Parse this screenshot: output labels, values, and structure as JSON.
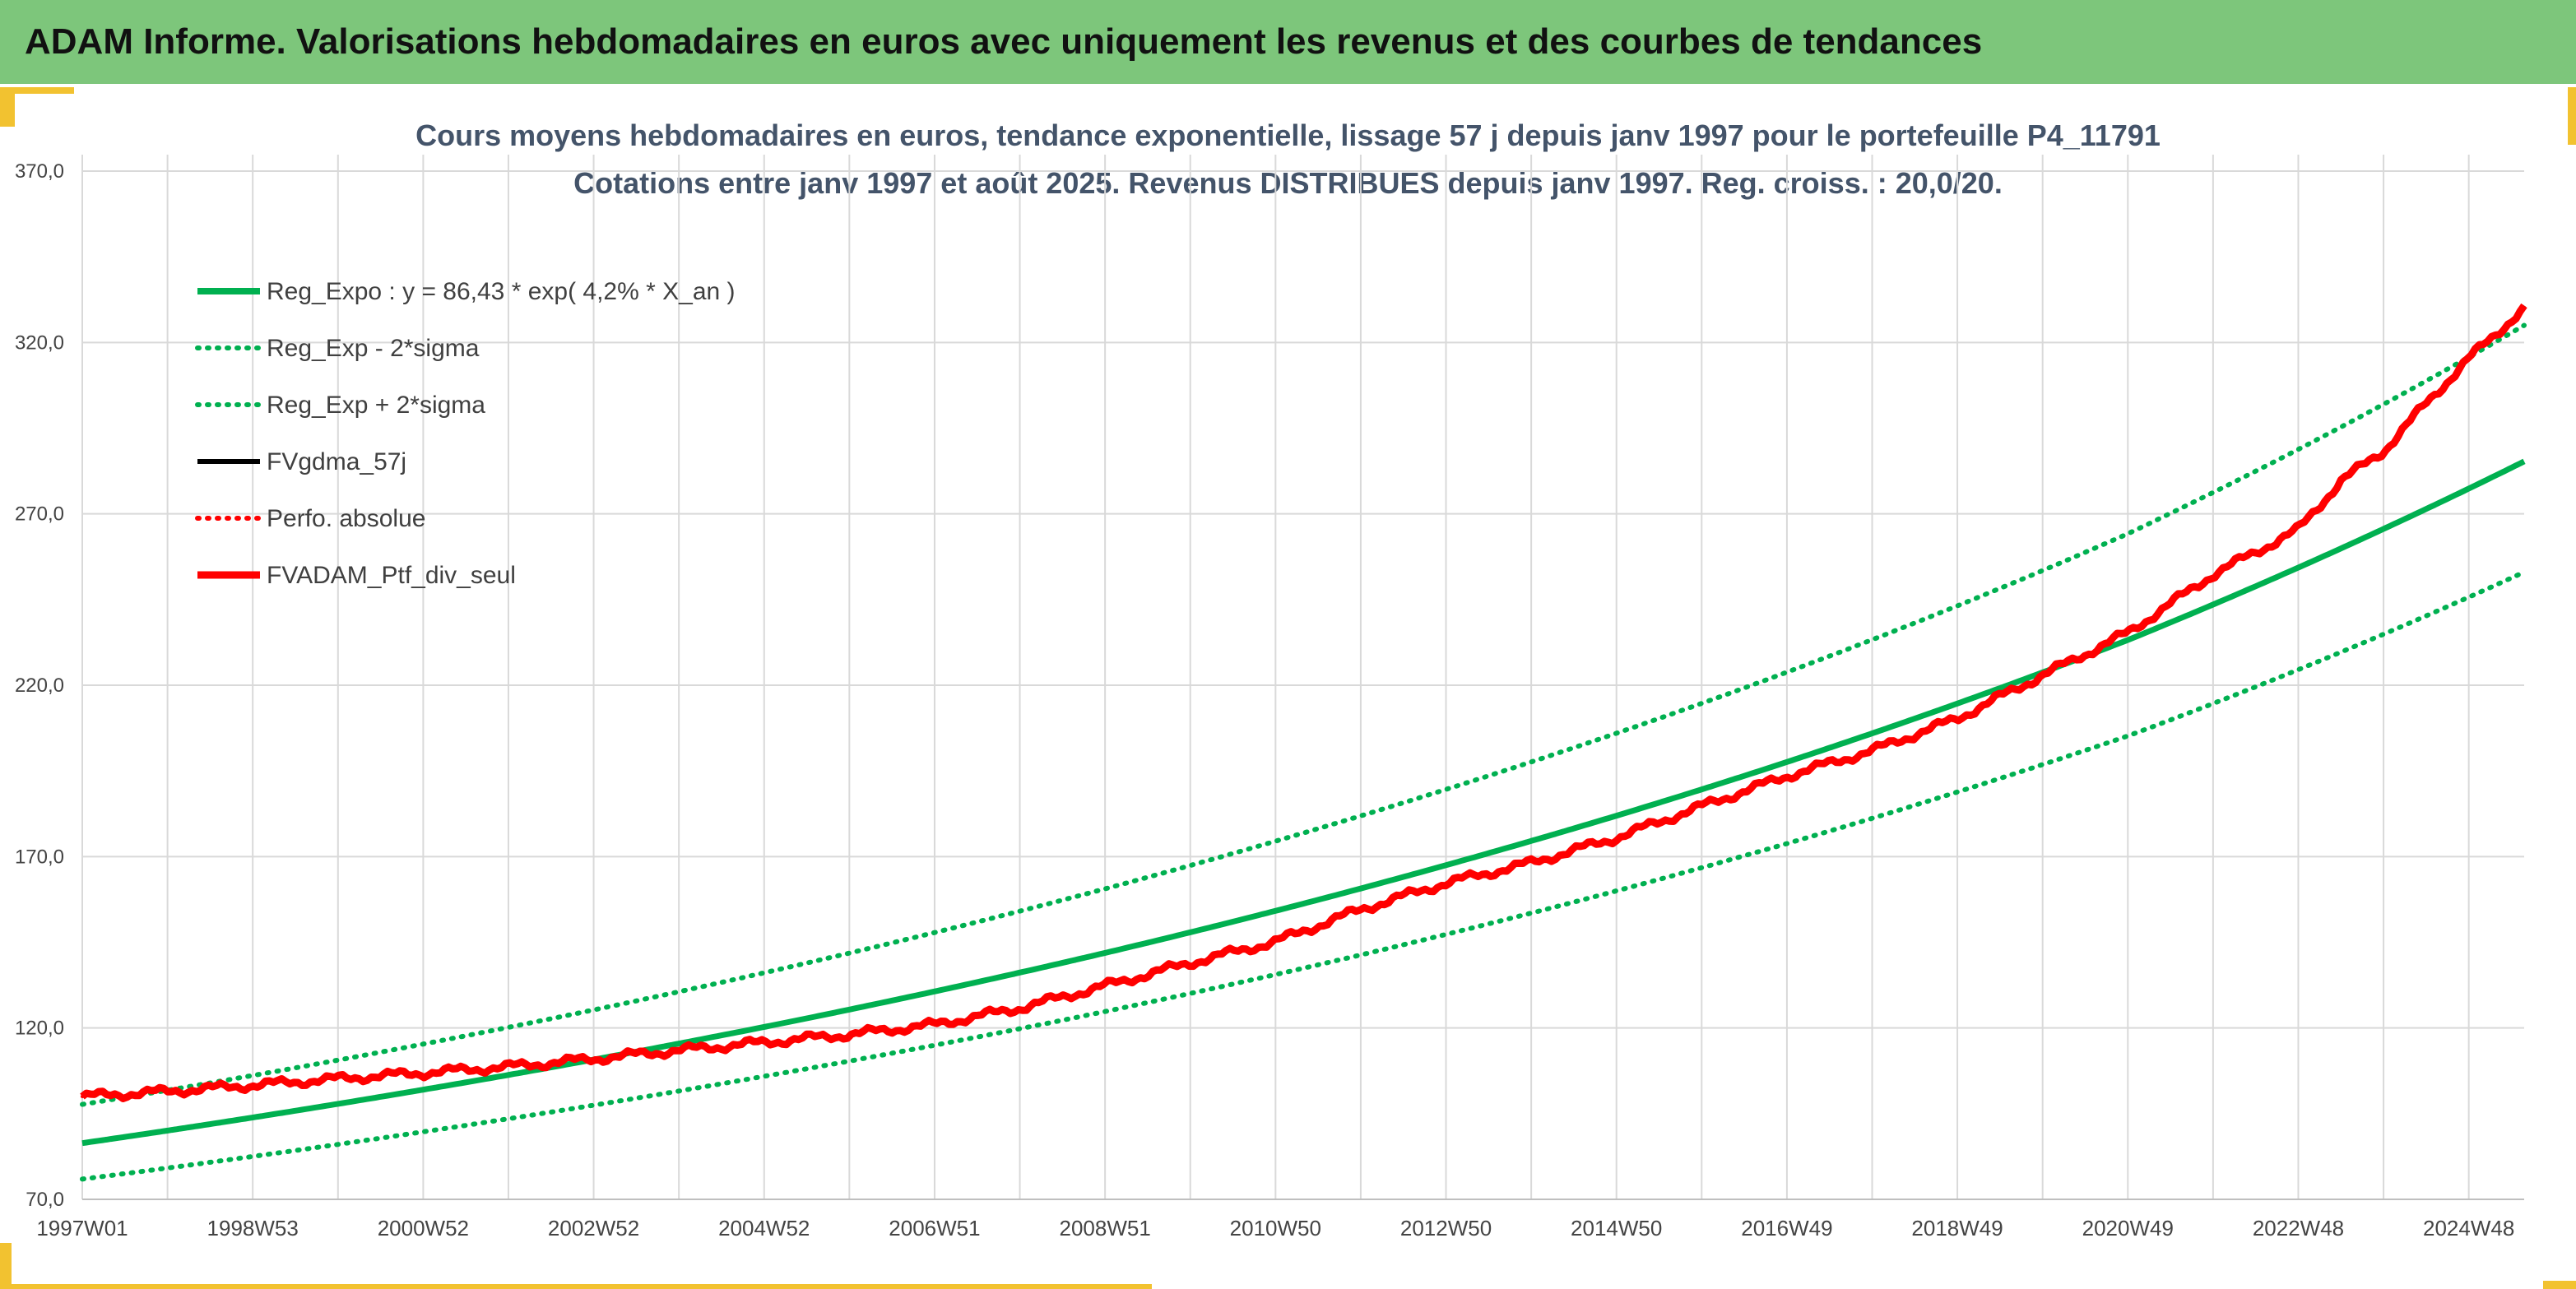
{
  "header": {
    "title": "ADAM Informe. Valorisations hebdomadaires en euros avec uniquement les revenus et des courbes de tendances"
  },
  "chart_data": {
    "type": "line",
    "title_line1": "Cours moyens hebdomadaires en euros, tendance exponentielle, lissage 57 j depuis janv 1997 pour le portefeuille P4_11791",
    "title_line2": "Cotations entre janv 1997 et août 2025. Revenus DISTRIBUES depuis janv 1997. Reg. croiss. : 20,0/20.",
    "ylim": [
      70,
      370
    ],
    "yticks": [
      "70,0",
      "120,0",
      "170,0",
      "220,0",
      "270,0",
      "320,0",
      "370,0"
    ],
    "ytick_values": [
      70,
      120,
      170,
      220,
      270,
      320,
      370
    ],
    "xlim": [
      1997.0,
      2025.65
    ],
    "xticks": [
      "1997W01",
      "1998W53",
      "2000W52",
      "2002W52",
      "2004W52",
      "2006W51",
      "2008W51",
      "2010W50",
      "2012W50",
      "2014W50",
      "2016W49",
      "2018W49",
      "2020W49",
      "2022W48",
      "2024W48"
    ],
    "xtick_years": [
      1997.0,
      1999.0,
      2001.0,
      2003.0,
      2005.0,
      2007.0,
      2009.0,
      2011.0,
      2013.0,
      2015.0,
      2017.0,
      2019.0,
      2021.0,
      2023.0,
      2025.0
    ],
    "grid": true,
    "legend_position": "top-left",
    "colors": {
      "green": "#00b050",
      "black": "#000000",
      "red": "#ff0000",
      "grid": "#d9d9d9"
    },
    "series": [
      {
        "name": "Reg_Expo : y = 86,43 * exp( 4,2% *  X_an )",
        "style": "solid",
        "color": "#00b050",
        "x": [
          1997.0,
          2001.0,
          2005.0,
          2009.0,
          2013.0,
          2017.0,
          2021.0,
          2025.65
        ],
        "values": [
          86.4,
          102.0,
          120.3,
          141.9,
          167.5,
          197.6,
          233.2,
          285.3
        ]
      },
      {
        "name": "Reg_Exp - 2*sigma",
        "style": "dotted",
        "color": "#00b050",
        "x": [
          1997.0,
          2001.0,
          2005.0,
          2009.0,
          2013.0,
          2017.0,
          2021.0,
          2025.65
        ],
        "values": [
          75.9,
          89.7,
          105.9,
          124.8,
          147.3,
          173.8,
          205.2,
          253.0
        ]
      },
      {
        "name": "Reg_Exp + 2*sigma",
        "style": "dotted",
        "color": "#00b050",
        "x": [
          1997.0,
          2001.0,
          2005.0,
          2009.0,
          2013.0,
          2017.0,
          2021.0,
          2025.65
        ],
        "values": [
          97.7,
          115.3,
          136.1,
          160.6,
          189.6,
          223.8,
          264.2,
          325.0
        ]
      },
      {
        "name": "FVgdma_57j",
        "style": "solid",
        "color": "#000000",
        "x": [
          1997.0,
          1998.0,
          1999.0,
          2000.0,
          2001.0,
          2002.0,
          2003.0,
          2004.0,
          2005.0,
          2006.0,
          2007.0,
          2008.0,
          2009.0,
          2010.0,
          2011.0,
          2012.0,
          2013.0,
          2014.0,
          2015.0,
          2016.0,
          2017.0,
          2018.0,
          2019.0,
          2020.0,
          2021.0,
          2022.0,
          2023.0,
          2023.5,
          2024.0,
          2024.5,
          2025.0,
          2025.65
        ],
        "values": [
          100.0,
          101.5,
          103.3,
          105.2,
          106.9,
          108.7,
          111.0,
          113.5,
          115.8,
          118.1,
          121.0,
          125.8,
          132.3,
          139.0,
          145.2,
          154.6,
          162.3,
          168.2,
          175.5,
          184.7,
          193.5,
          200.9,
          210.3,
          222.9,
          235.3,
          252.3,
          265.4,
          279.6,
          288.3,
          302.2,
          315.3,
          330.0
        ]
      },
      {
        "name": "Perfo. absolue",
        "style": "dotted",
        "color": "#ff0000",
        "x": [
          1997.0,
          1998.0,
          1999.0,
          2000.0,
          2001.0,
          2002.0,
          2003.0,
          2004.0,
          2005.0,
          2006.0,
          2007.0,
          2008.0,
          2009.0,
          2010.0,
          2011.0,
          2012.0,
          2013.0,
          2014.0,
          2015.0,
          2016.0,
          2017.0,
          2018.0,
          2019.0,
          2020.0,
          2021.0,
          2022.0,
          2023.0,
          2023.5,
          2024.0,
          2024.5,
          2025.0,
          2025.65
        ],
        "values": [
          100.0,
          101.5,
          103.3,
          105.2,
          106.9,
          108.7,
          111.0,
          113.5,
          115.8,
          118.1,
          121.0,
          125.8,
          132.3,
          139.0,
          145.2,
          154.6,
          162.3,
          168.2,
          175.5,
          184.7,
          193.5,
          200.9,
          210.3,
          222.9,
          235.3,
          252.3,
          265.4,
          279.6,
          288.3,
          302.2,
          315.3,
          330.0
        ]
      },
      {
        "name": "FVADAM_Ptf_div_seul",
        "style": "solid",
        "color": "#ff0000",
        "x": [
          1997.0,
          1998.0,
          1999.0,
          2000.0,
          2001.0,
          2002.0,
          2003.0,
          2004.0,
          2005.0,
          2006.0,
          2007.0,
          2008.0,
          2009.0,
          2010.0,
          2011.0,
          2012.0,
          2013.0,
          2014.0,
          2015.0,
          2016.0,
          2017.0,
          2018.0,
          2019.0,
          2020.0,
          2021.0,
          2022.0,
          2023.0,
          2023.5,
          2024.0,
          2024.5,
          2025.0,
          2025.65
        ],
        "values": [
          100.0,
          101.5,
          103.3,
          105.2,
          106.9,
          108.7,
          111.0,
          113.5,
          115.8,
          118.1,
          121.0,
          125.8,
          132.3,
          139.0,
          145.2,
          154.6,
          162.3,
          168.2,
          175.5,
          184.7,
          193.5,
          200.9,
          210.3,
          222.9,
          235.3,
          252.3,
          265.4,
          279.6,
          288.3,
          302.2,
          315.3,
          330.0
        ]
      }
    ]
  }
}
